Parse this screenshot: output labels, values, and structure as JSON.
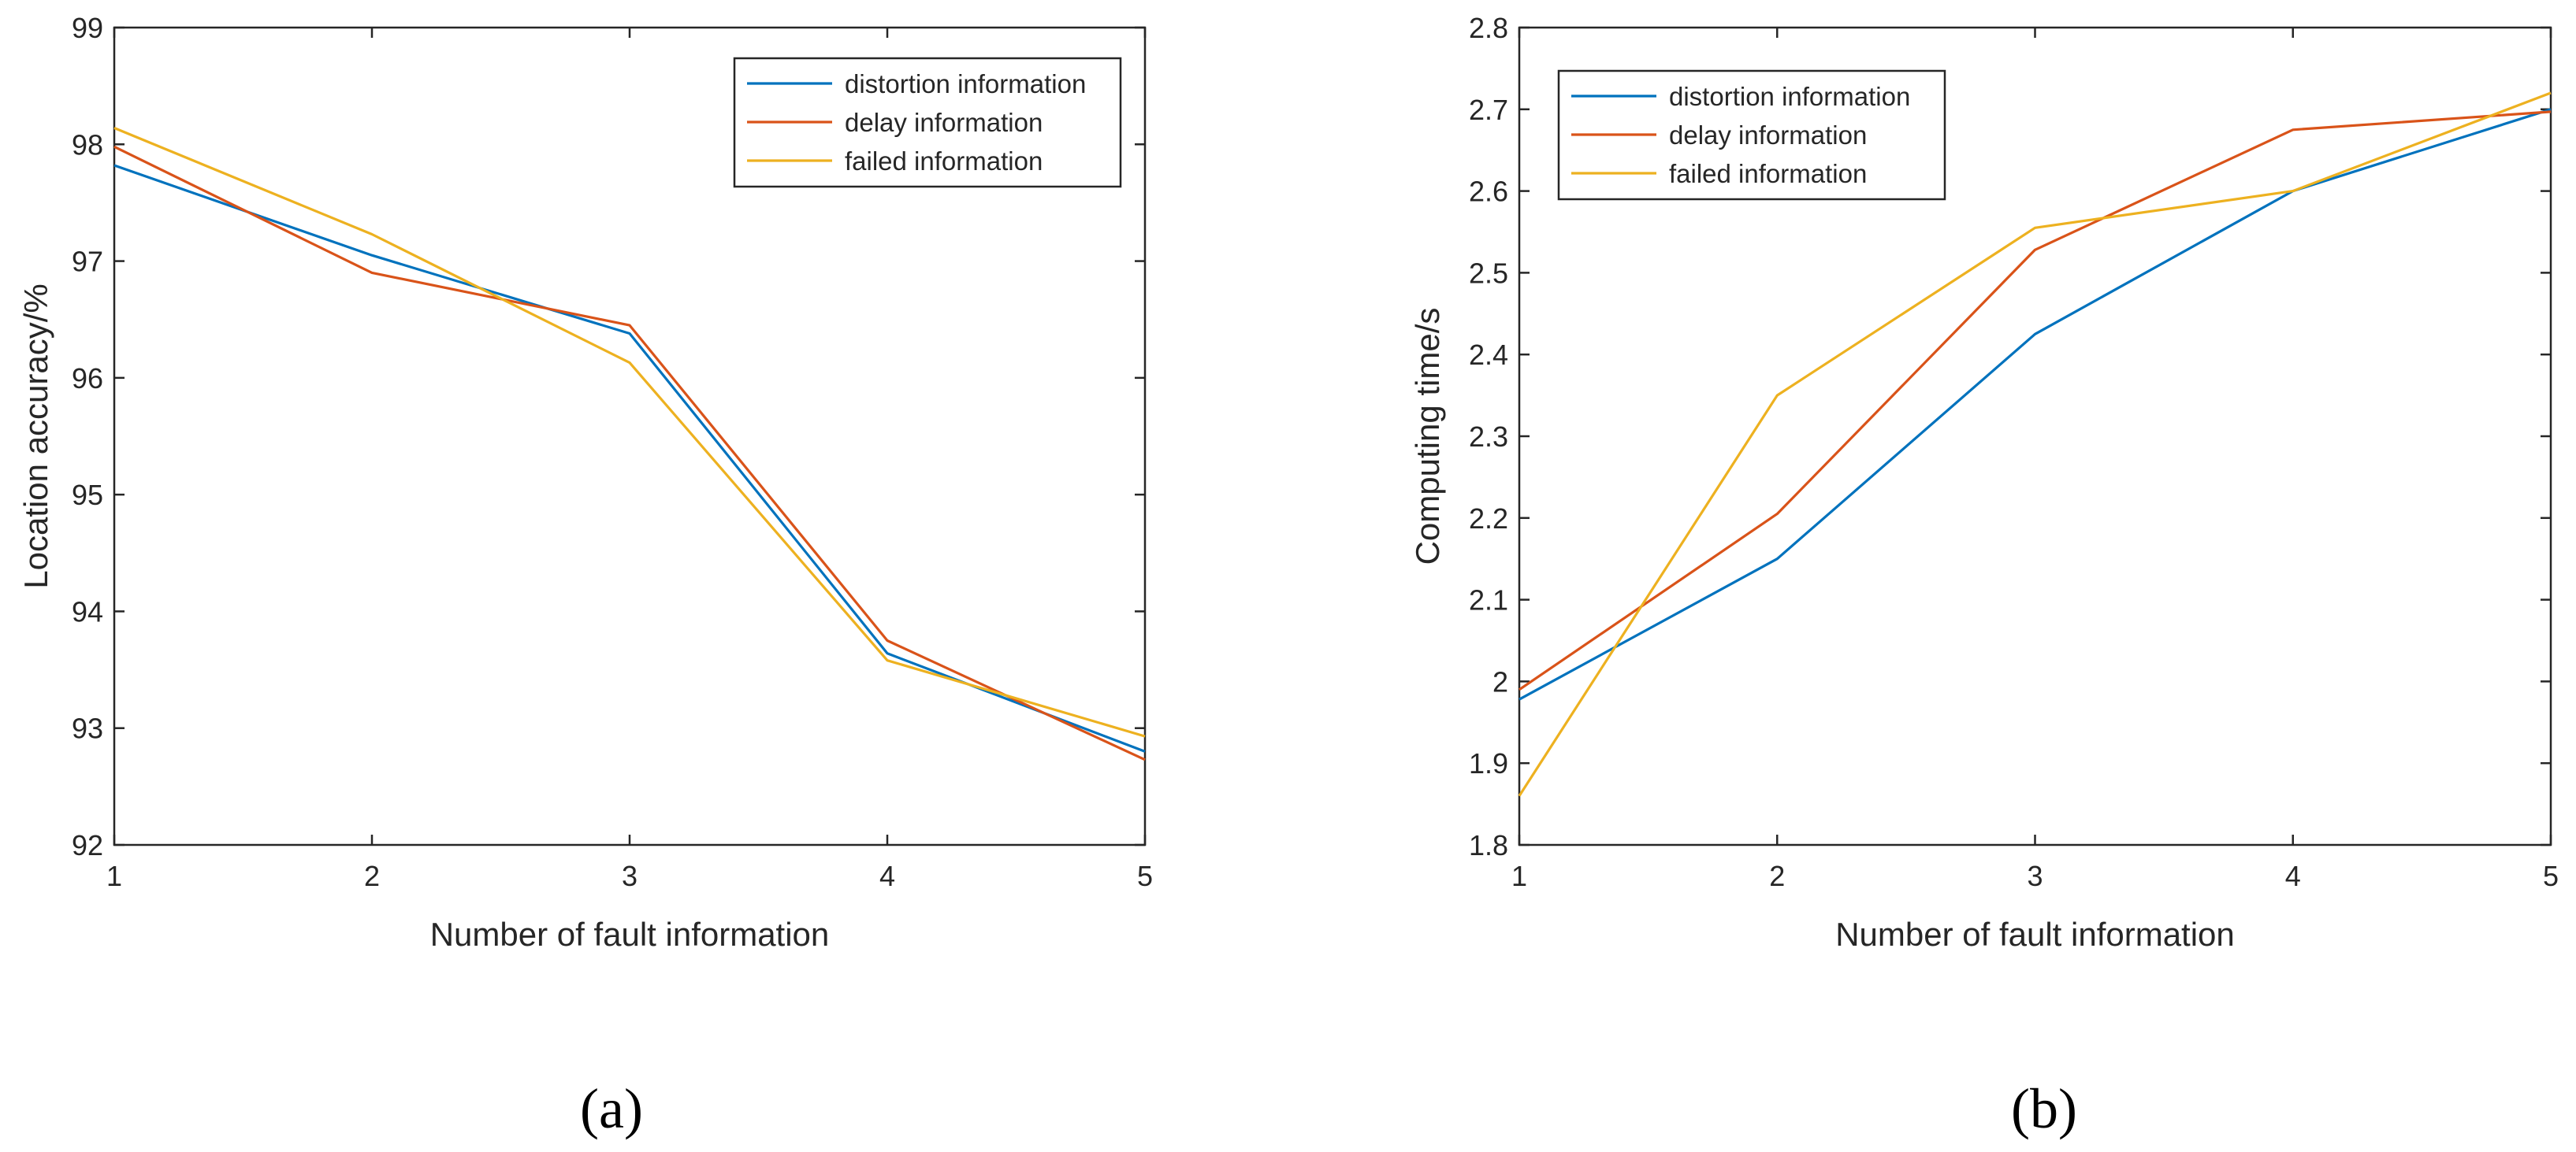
{
  "colors": {
    "distortion": "#0072BD",
    "delay": "#D95319",
    "failed": "#EDB120",
    "axis": "#262626"
  },
  "chart_data": [
    {
      "type": "line",
      "caption": "(a)",
      "xlabel": "Number of fault information",
      "ylabel": "Location accuracy/%",
      "x": [
        1,
        2,
        3,
        4,
        5
      ],
      "xticks": [
        "1",
        "2",
        "3",
        "4",
        "5"
      ],
      "xlim": [
        1,
        5
      ],
      "ylim": [
        92,
        99
      ],
      "yticks": [
        "92",
        "93",
        "94",
        "95",
        "96",
        "97",
        "98",
        "99"
      ],
      "legend_position": "top-right",
      "series": [
        {
          "name": "distortion information",
          "color_key": "distortion",
          "values": [
            97.82,
            97.05,
            96.38,
            93.64,
            92.8
          ]
        },
        {
          "name": "delay information",
          "color_key": "delay",
          "values": [
            97.98,
            96.9,
            96.45,
            93.75,
            92.73
          ]
        },
        {
          "name": "failed information",
          "color_key": "failed",
          "values": [
            98.14,
            97.23,
            96.13,
            93.58,
            92.93
          ]
        }
      ]
    },
    {
      "type": "line",
      "caption": "(b)",
      "xlabel": "Number of fault information",
      "ylabel": "Computing time/s",
      "x": [
        1,
        2,
        3,
        4,
        5
      ],
      "xticks": [
        "1",
        "2",
        "3",
        "4",
        "5"
      ],
      "xlim": [
        1,
        5
      ],
      "ylim": [
        1.8,
        2.8
      ],
      "yticks": [
        "1.8",
        "1.9",
        "2",
        "2.1",
        "2.2",
        "2.3",
        "2.4",
        "2.5",
        "2.6",
        "2.7",
        "2.8"
      ],
      "legend_position": "top-left",
      "series": [
        {
          "name": "distortion information",
          "color_key": "distortion",
          "values": [
            1.978,
            2.15,
            2.425,
            2.6,
            2.7
          ]
        },
        {
          "name": "delay information",
          "color_key": "delay",
          "values": [
            1.99,
            2.205,
            2.528,
            2.675,
            2.697
          ]
        },
        {
          "name": "failed information",
          "color_key": "failed",
          "values": [
            1.86,
            2.35,
            2.555,
            2.6,
            2.72
          ]
        }
      ]
    }
  ]
}
